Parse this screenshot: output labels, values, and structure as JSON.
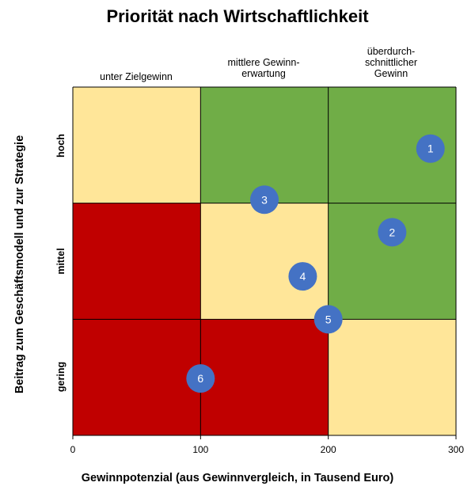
{
  "chart_data": {
    "type": "scatter",
    "title": "Priorität nach Wirtschaftlichkeit",
    "xlabel": "Gewinnpotenzial (aus Gewinnvergleich, in Tausend Euro)",
    "ylabel": "Beitrag zum Geschäftsmodell und zur Strategie",
    "xlim": [
      0,
      300
    ],
    "x_ticks": [
      0,
      100,
      200,
      300
    ],
    "column_headers": [
      "unter Zielgewinn",
      "mittlere Gewinn-\nerwartung",
      "überdurch-\nschnittlicher\nGewinn"
    ],
    "row_labels": [
      "hoch",
      "mittel",
      "gering"
    ],
    "grid_colors": [
      [
        "#FFE699",
        "#70AD47",
        "#70AD47"
      ],
      [
        "#C00000",
        "#FFE699",
        "#70AD47"
      ],
      [
        "#C00000",
        "#C00000",
        "#FFE699"
      ]
    ],
    "points": [
      {
        "label": "1",
        "x": 280,
        "level": 2.47
      },
      {
        "label": "2",
        "x": 250,
        "level": 1.75
      },
      {
        "label": "3",
        "x": 150,
        "level": 2.03
      },
      {
        "label": "4",
        "x": 180,
        "level": 1.37
      },
      {
        "label": "5",
        "x": 200,
        "level": 1.0
      },
      {
        "label": "6",
        "x": 100,
        "level": 0.49
      }
    ],
    "bubble_color": "#4472C4",
    "grid": true
  }
}
